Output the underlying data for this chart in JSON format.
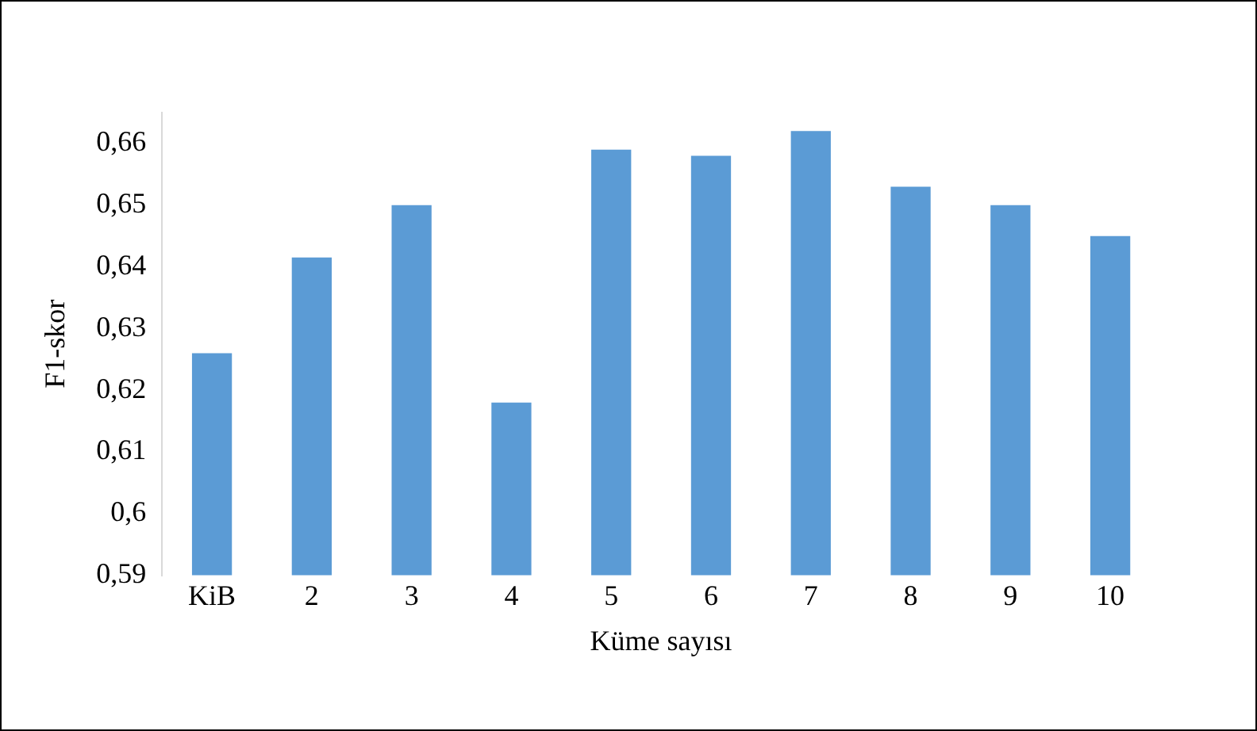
{
  "chart_data": {
    "type": "bar",
    "xlabel": "Küme sayısı",
    "ylabel": "F1-skor",
    "categories": [
      "KiB",
      "2",
      "3",
      "4",
      "5",
      "6",
      "7",
      "8",
      "9",
      "10"
    ],
    "values": [
      0.626,
      0.6415,
      0.65,
      0.618,
      0.659,
      0.658,
      0.662,
      0.653,
      0.65,
      0.645
    ],
    "color": "#5b9bd5",
    "ylim": [
      0.59,
      0.665
    ],
    "yticks": [
      {
        "value": 0.59,
        "label": "0,59"
      },
      {
        "value": 0.6,
        "label": "0,6"
      },
      {
        "value": 0.61,
        "label": "0,61"
      },
      {
        "value": 0.62,
        "label": "0,62"
      },
      {
        "value": 0.63,
        "label": "0,63"
      },
      {
        "value": 0.64,
        "label": "0,64"
      },
      {
        "value": 0.65,
        "label": "0,65"
      },
      {
        "value": 0.66,
        "label": "0,66"
      }
    ],
    "grid": false
  }
}
